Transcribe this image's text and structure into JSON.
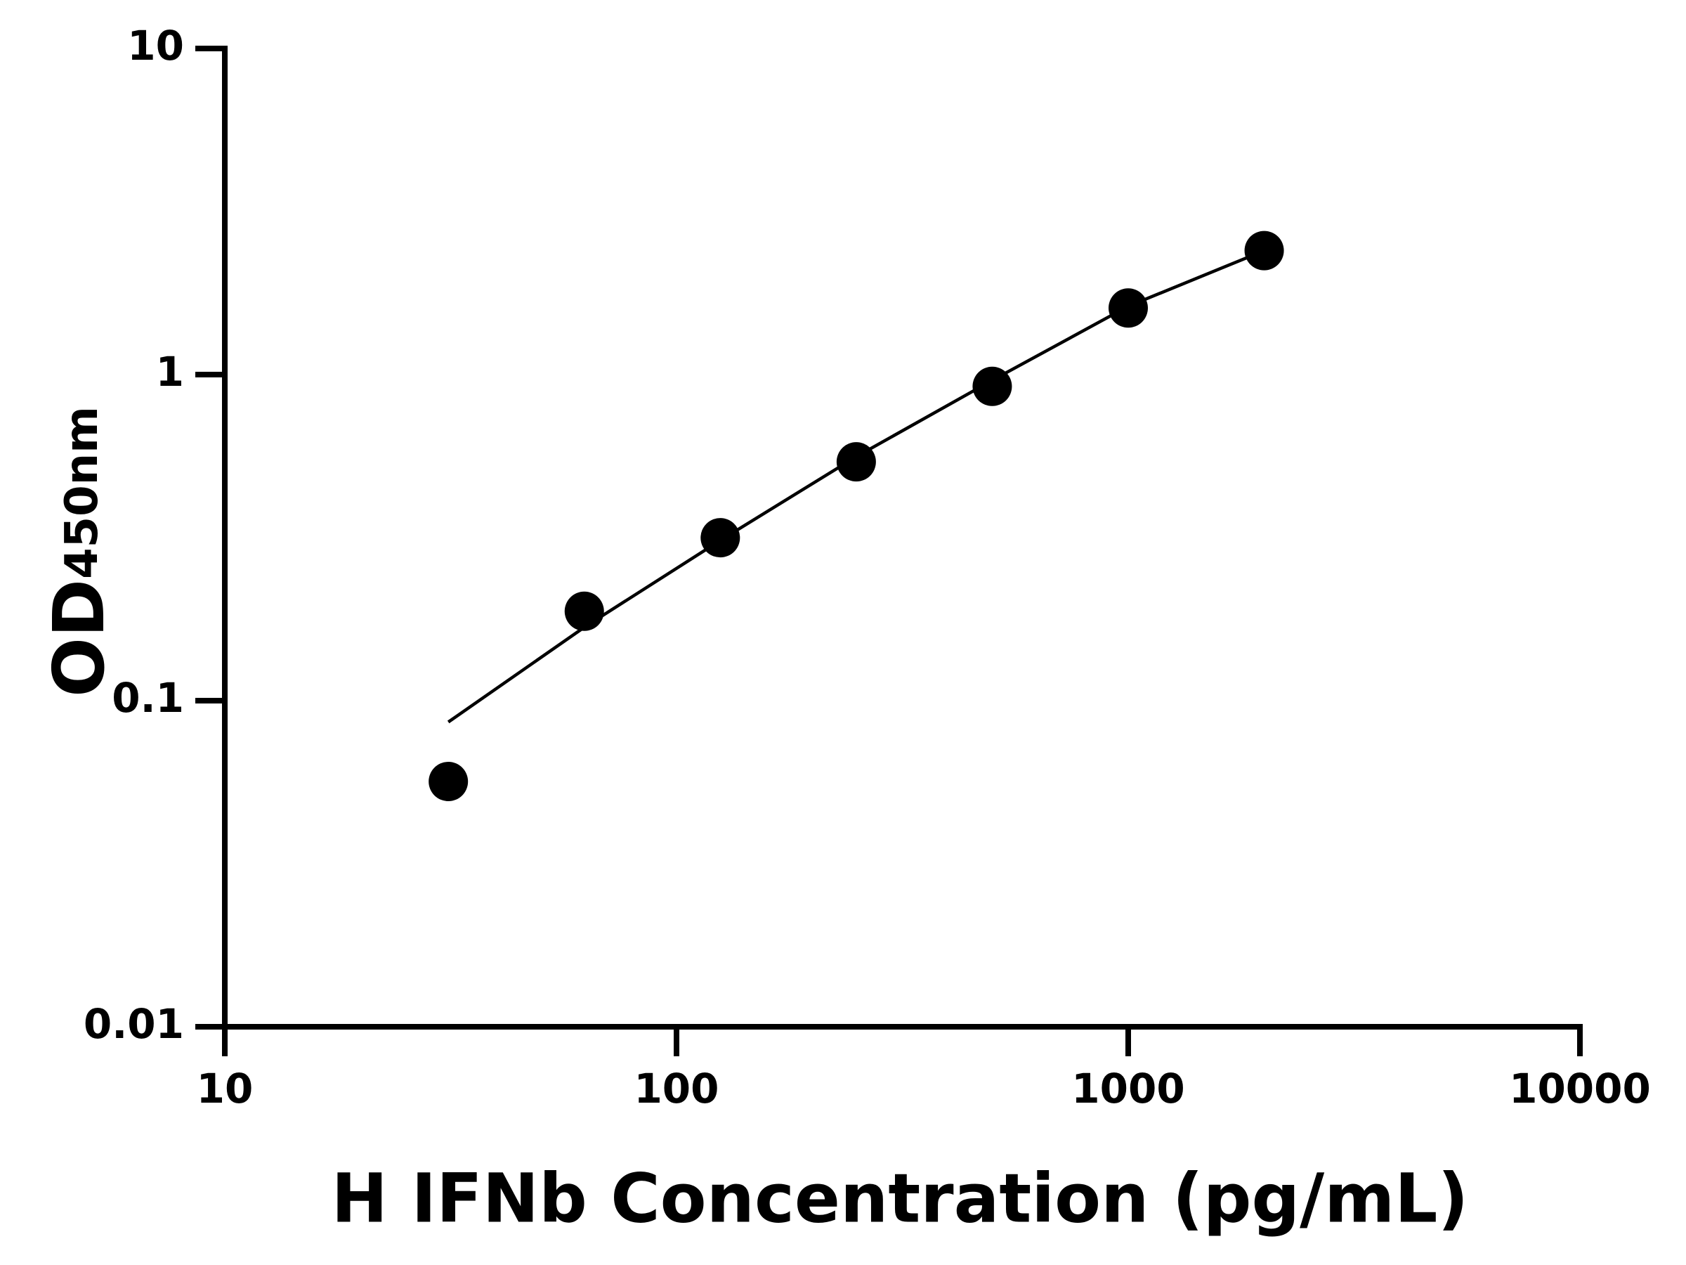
{
  "chart_data": {
    "type": "scatter",
    "xlabel": "H IFNb Concentration (pg/mL)",
    "ylabel": {
      "main": "OD",
      "sub": "450nm"
    },
    "x": [
      31.25,
      62.5,
      125,
      250,
      500,
      1000,
      2000
    ],
    "series": [
      {
        "color": "#000000",
        "values": [
          0.0565,
          0.188,
          0.316,
          0.54,
          0.92,
          1.6,
          2.4
        ]
      }
    ],
    "fit": {
      "color": "#000000",
      "x": [
        31.25,
        62.5,
        125,
        250,
        500,
        1000,
        2000
      ],
      "values": [
        0.086,
        0.168,
        0.31,
        0.56,
        0.96,
        1.62,
        2.4
      ]
    },
    "xlim": [
      10,
      10000
    ],
    "ylim": [
      0.01,
      10
    ],
    "xticks": [
      10,
      100,
      1000,
      10000
    ],
    "yticks": [
      0.01,
      0.1,
      1,
      10
    ],
    "xscale": "log",
    "yscale": "log",
    "grid": false
  }
}
